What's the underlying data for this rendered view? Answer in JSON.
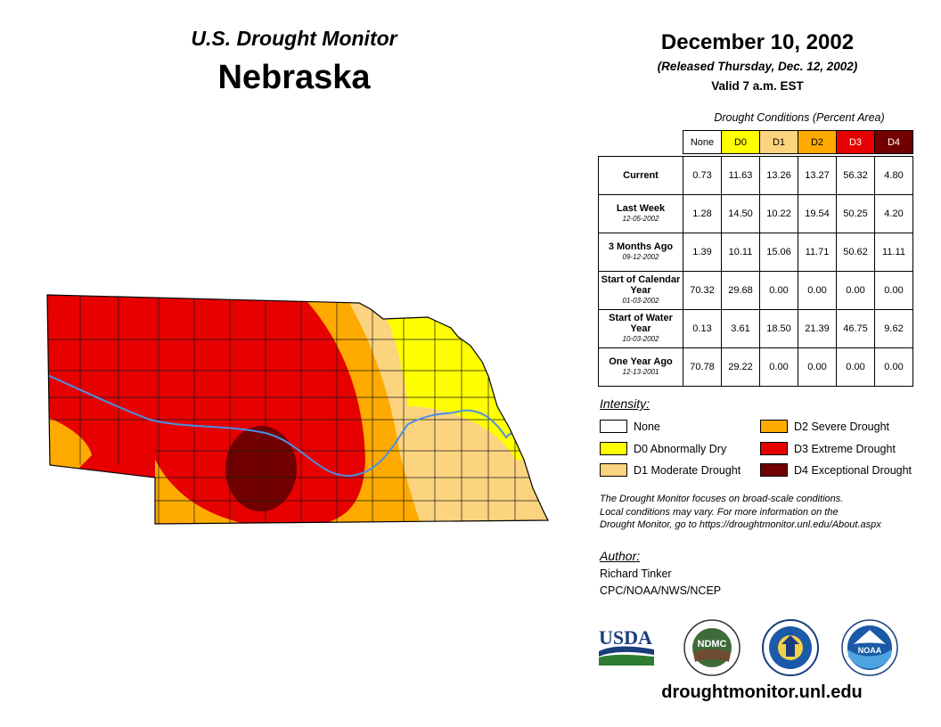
{
  "header": {
    "product": "U.S. Drought Monitor",
    "state": "Nebraska",
    "date": "December 10, 2002",
    "released": "(Released Thursday, Dec. 12, 2002)",
    "valid": "Valid 7 a.m. EST"
  },
  "table": {
    "caption": "Drought Conditions (Percent Area)",
    "columns": [
      {
        "label": "None",
        "color": "#ffffff",
        "text_color": "#000000"
      },
      {
        "label": "D0",
        "color": "#ffff00",
        "text_color": "#000000"
      },
      {
        "label": "D1",
        "color": "#fcd37f",
        "text_color": "#000000"
      },
      {
        "label": "D2",
        "color": "#ffaa00",
        "text_color": "#000000"
      },
      {
        "label": "D3",
        "color": "#e60000",
        "text_color": "#ffffff"
      },
      {
        "label": "D4",
        "color": "#730000",
        "text_color": "#ffffff"
      }
    ],
    "rows": [
      {
        "label": "Current",
        "date": "",
        "values": [
          "0.73",
          "11.63",
          "13.26",
          "13.27",
          "56.32",
          "4.80"
        ]
      },
      {
        "label": "Last Week",
        "date": "12-05-2002",
        "values": [
          "1.28",
          "14.50",
          "10.22",
          "19.54",
          "50.25",
          "4.20"
        ]
      },
      {
        "label": "3 Months Ago",
        "date": "09-12-2002",
        "values": [
          "1.39",
          "10.11",
          "15.06",
          "11.71",
          "50.62",
          "11.11"
        ]
      },
      {
        "label": "Start of Calendar Year",
        "date": "01-03-2002",
        "values": [
          "70.32",
          "29.68",
          "0.00",
          "0.00",
          "0.00",
          "0.00"
        ]
      },
      {
        "label": "Start of Water Year",
        "date": "10-03-2002",
        "values": [
          "0.13",
          "3.61",
          "18.50",
          "21.39",
          "46.75",
          "9.62"
        ]
      },
      {
        "label": "One Year Ago",
        "date": "12-13-2001",
        "values": [
          "70.78",
          "29.22",
          "0.00",
          "0.00",
          "0.00",
          "0.00"
        ]
      }
    ]
  },
  "legend": {
    "title": "Intensity:",
    "items": [
      {
        "label": "None",
        "color": "#ffffff"
      },
      {
        "label": "D0 Abnormally Dry",
        "color": "#ffff00"
      },
      {
        "label": "D1 Moderate Drought",
        "color": "#fcd37f"
      },
      {
        "label": "D2 Severe Drought",
        "color": "#ffaa00"
      },
      {
        "label": "D3 Extreme Drought",
        "color": "#e60000"
      },
      {
        "label": "D4 Exceptional Drought",
        "color": "#730000"
      }
    ]
  },
  "note": {
    "line1": "The Drought Monitor focuses on broad-scale conditions.",
    "line2": "Local conditions may vary. For more information on the",
    "line3": "Drought Monitor, go to https://droughtmonitor.unl.edu/About.aspx"
  },
  "author": {
    "title": "Author:",
    "name": "Richard Tinker",
    "org": "CPC/NOAA/NWS/NCEP"
  },
  "logos": {
    "usda": "USDA",
    "ndmc": "NDMC",
    "noaa": "NOAA"
  },
  "website": "droughtmonitor.unl.edu",
  "map_colors": {
    "d0": "#ffff00",
    "d1": "#fcd37f",
    "d2": "#ffaa00",
    "d3": "#e60000",
    "d4": "#730000",
    "river": "#4a90e2",
    "county_line": "#1a1a1a"
  }
}
